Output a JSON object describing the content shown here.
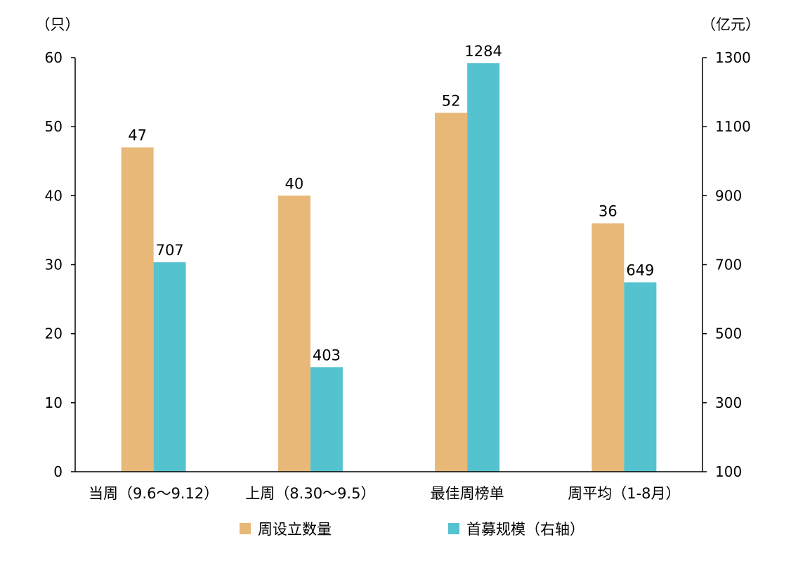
{
  "chart_data": {
    "type": "bar",
    "categories": [
      "当周（9.6～9.12）",
      "上周（8.30～9.5）",
      "最佳周榜单",
      "周平均（1-8月）"
    ],
    "series": [
      {
        "name": "周设立数量",
        "axis": "left",
        "color": "#E8B878",
        "values": [
          47,
          40,
          52,
          36
        ]
      },
      {
        "name": "首募规模（右轴）",
        "axis": "right",
        "color": "#55C3CF",
        "values": [
          707,
          403,
          1284,
          649
        ]
      }
    ],
    "y_left": {
      "unit_label": "（只）",
      "min": 0,
      "max": 60,
      "ticks": [
        0,
        10,
        20,
        30,
        40,
        50,
        60
      ]
    },
    "y_right": {
      "unit_label": "（亿元）",
      "min": 100,
      "max": 1300,
      "ticks": [
        100,
        300,
        500,
        700,
        900,
        1100,
        1300
      ]
    },
    "grid": false,
    "legend_position": "bottom"
  }
}
